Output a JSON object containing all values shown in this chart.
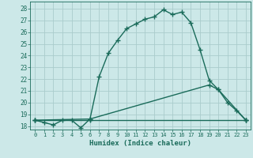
{
  "title": "",
  "xlabel": "Humidex (Indice chaleur)",
  "bg_color": "#cce8e8",
  "grid_color": "#aacccc",
  "line_color": "#1a6b5a",
  "xlim": [
    -0.5,
    23.5
  ],
  "ylim": [
    17.7,
    28.6
  ],
  "yticks": [
    18,
    19,
    20,
    21,
    22,
    23,
    24,
    25,
    26,
    27,
    28
  ],
  "xticks": [
    0,
    1,
    2,
    3,
    4,
    5,
    6,
    7,
    8,
    9,
    10,
    11,
    12,
    13,
    14,
    15,
    16,
    17,
    18,
    19,
    20,
    21,
    22,
    23
  ],
  "curve1_x": [
    0,
    1,
    2,
    3,
    4,
    5,
    6,
    7,
    8,
    9,
    10,
    11,
    12,
    13,
    14,
    15,
    16,
    17,
    18,
    19,
    20,
    21,
    22,
    23
  ],
  "curve1_y": [
    18.5,
    18.3,
    18.1,
    18.5,
    18.5,
    17.85,
    18.6,
    22.2,
    24.2,
    25.3,
    26.3,
    26.7,
    27.1,
    27.3,
    27.9,
    27.5,
    27.7,
    26.8,
    24.5,
    21.9,
    21.1,
    20.0,
    19.3,
    18.5
  ],
  "curve2_x": [
    0,
    6,
    19,
    20,
    23
  ],
  "curve2_y": [
    18.5,
    18.6,
    21.5,
    21.1,
    18.5
  ],
  "curve3_x": [
    0,
    6,
    23
  ],
  "curve3_y": [
    18.5,
    18.5,
    18.5
  ],
  "marker": "+",
  "marker_size": 4,
  "linewidth": 1.0
}
